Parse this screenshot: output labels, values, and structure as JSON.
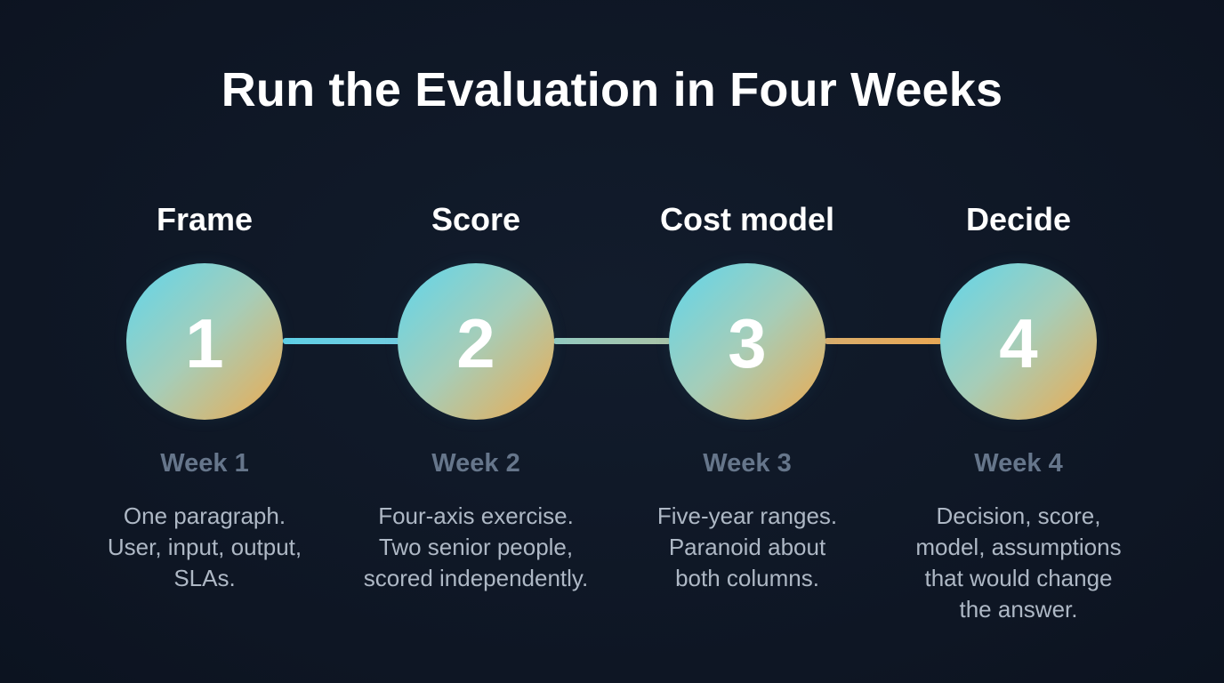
{
  "title": "Run the Evaluation in Four Weeks",
  "colors": {
    "background": "#0f1726",
    "circle_gradient_start": "#5fd6ec",
    "circle_gradient_mid": "#a6cdb8",
    "circle_gradient_end": "#eeaa4e",
    "week_text": "#66768b",
    "description_text": "#aeb8c5"
  },
  "steps": [
    {
      "label": "Frame",
      "number": "1",
      "week": "Week 1",
      "description": [
        "One paragraph.",
        "User, input, output,",
        "SLAs."
      ]
    },
    {
      "label": "Score",
      "number": "2",
      "week": "Week 2",
      "description": [
        "Four-axis exercise.",
        "Two senior people,",
        "scored independently."
      ]
    },
    {
      "label": "Cost model",
      "number": "3",
      "week": "Week 3",
      "description": [
        "Five-year ranges.",
        "Paranoid about",
        "both columns."
      ]
    },
    {
      "label": "Decide",
      "number": "4",
      "week": "Week 4",
      "description": [
        "Decision, score,",
        "model, assumptions",
        "that would change",
        "the answer."
      ]
    }
  ]
}
